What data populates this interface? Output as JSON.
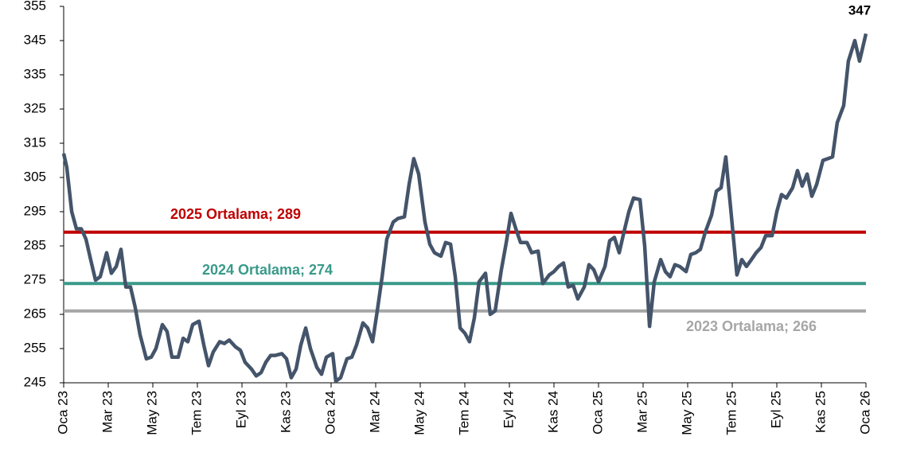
{
  "chart_data": {
    "type": "line",
    "xlim": [
      0,
      36
    ],
    "xticks": [
      {
        "value": 0,
        "label": "Oca 23"
      },
      {
        "value": 2,
        "label": "Mar 23"
      },
      {
        "value": 4,
        "label": "May 23"
      },
      {
        "value": 6,
        "label": "Tem 23"
      },
      {
        "value": 8,
        "label": "Eyl 23"
      },
      {
        "value": 10,
        "label": "Kas 23"
      },
      {
        "value": 12,
        "label": "Oca 24"
      },
      {
        "value": 14,
        "label": "Mar 24"
      },
      {
        "value": 16,
        "label": "May 24"
      },
      {
        "value": 18,
        "label": "Tem 24"
      },
      {
        "value": 20,
        "label": "Eyl 24"
      },
      {
        "value": 22,
        "label": "Kas 24"
      },
      {
        "value": 24,
        "label": "Oca 25"
      },
      {
        "value": 26,
        "label": "Mar 25"
      },
      {
        "value": 28,
        "label": "May 25"
      },
      {
        "value": 30,
        "label": "Tem 25"
      },
      {
        "value": 32,
        "label": "Eyl 25"
      },
      {
        "value": 34,
        "label": "Kas 25"
      },
      {
        "value": 36,
        "label": "Oca 26"
      }
    ],
    "ylim": [
      245,
      355
    ],
    "yticks": [
      245,
      255,
      265,
      275,
      285,
      295,
      305,
      315,
      325,
      335,
      345,
      355
    ],
    "x": [
      0,
      0.14,
      0.36,
      0.57,
      0.79,
      1,
      1.21,
      1.43,
      1.64,
      1.93,
      2.14,
      2.36,
      2.57,
      2.79,
      3,
      3.21,
      3.43,
      3.71,
      3.93,
      4.14,
      4.43,
      4.64,
      4.86,
      5.14,
      5.36,
      5.57,
      5.79,
      6.07,
      6.29,
      6.5,
      6.71,
      7,
      7.21,
      7.43,
      7.71,
      7.93,
      8.14,
      8.43,
      8.64,
      8.86,
      9.07,
      9.29,
      9.5,
      9.79,
      10,
      10.21,
      10.43,
      10.64,
      10.86,
      11.07,
      11.36,
      11.57,
      11.79,
      12.07,
      12.21,
      12.43,
      12.71,
      12.93,
      13.14,
      13.43,
      13.64,
      13.86,
      14.07,
      14.29,
      14.5,
      14.79,
      15,
      15.29,
      15.5,
      15.71,
      15.93,
      16.21,
      16.43,
      16.64,
      16.93,
      17.14,
      17.36,
      17.57,
      17.79,
      18,
      18.21,
      18.43,
      18.64,
      18.93,
      19.14,
      19.36,
      19.64,
      19.86,
      20.07,
      20.29,
      20.5,
      20.79,
      21,
      21.29,
      21.5,
      21.79,
      22,
      22.21,
      22.43,
      22.64,
      22.86,
      23.07,
      23.36,
      23.57,
      23.79,
      24,
      24.29,
      24.5,
      24.71,
      24.93,
      25.14,
      25.36,
      25.57,
      25.86,
      26.07,
      26.29,
      26.5,
      26.79,
      27,
      27.21,
      27.43,
      27.64,
      27.93,
      28.14,
      28.36,
      28.57,
      28.79,
      29.07,
      29.29,
      29.5,
      29.71,
      29.93,
      30.21,
      30.43,
      30.64,
      30.86,
      31.07,
      31.29,
      31.5,
      31.79,
      32,
      32.21,
      32.43,
      32.71,
      32.93,
      33.14,
      33.36,
      33.57,
      33.79,
      34.07,
      34.29,
      34.5,
      34.71,
      35,
      35.21,
      35.5,
      35.71,
      36
    ],
    "series": [
      {
        "color": "#44546a",
        "values": [
          312,
          308,
          295,
          290,
          290,
          287,
          281,
          275,
          276,
          283,
          277,
          279,
          284,
          273,
          273,
          267,
          259,
          252,
          252.5,
          255,
          262,
          260,
          252.5,
          252.5,
          258,
          257,
          262,
          263,
          256,
          250,
          254,
          257,
          256.5,
          257.5,
          255.5,
          254.5,
          251,
          249,
          247,
          248,
          251,
          253,
          253,
          253.5,
          252,
          246.5,
          249,
          256,
          261,
          255,
          249.5,
          247.5,
          252.5,
          253.5,
          245.5,
          246.5,
          252,
          252.5,
          256,
          262.5,
          261,
          257,
          266,
          276,
          287,
          292,
          293,
          293.5,
          303,
          310.5,
          306,
          292,
          285.5,
          283,
          282,
          286,
          285.5,
          276,
          261,
          259.5,
          257,
          264,
          274.5,
          277,
          265,
          266,
          278,
          286,
          294.5,
          290,
          286,
          286,
          283,
          283.5,
          274,
          276.5,
          277.5,
          279,
          280,
          273,
          273.5,
          269.5,
          273,
          279.5,
          278,
          274.5,
          279,
          286.5,
          287.5,
          283,
          289,
          295,
          299,
          298.5,
          285,
          261.5,
          274.5,
          281,
          277.5,
          276,
          279.5,
          279,
          277.5,
          282.5,
          283,
          284,
          289,
          294,
          301,
          302,
          311,
          296,
          276.5,
          281,
          279,
          281,
          283,
          284.5,
          288,
          288,
          295,
          300,
          299,
          302,
          307,
          302.5,
          306,
          299.5,
          303,
          310,
          310.5,
          311,
          321,
          326,
          339,
          345,
          339,
          347
        ]
      }
    ],
    "reference_lines": [
      {
        "label": "2025 Ortalama; 289",
        "value": 289,
        "color": "#c00000"
      },
      {
        "label": "2024 Ortalama; 274",
        "value": 274,
        "color": "#3a9a8a"
      },
      {
        "label": "2023 Ortalama; 266",
        "value": 266,
        "color": "#a6a6a6"
      }
    ]
  }
}
